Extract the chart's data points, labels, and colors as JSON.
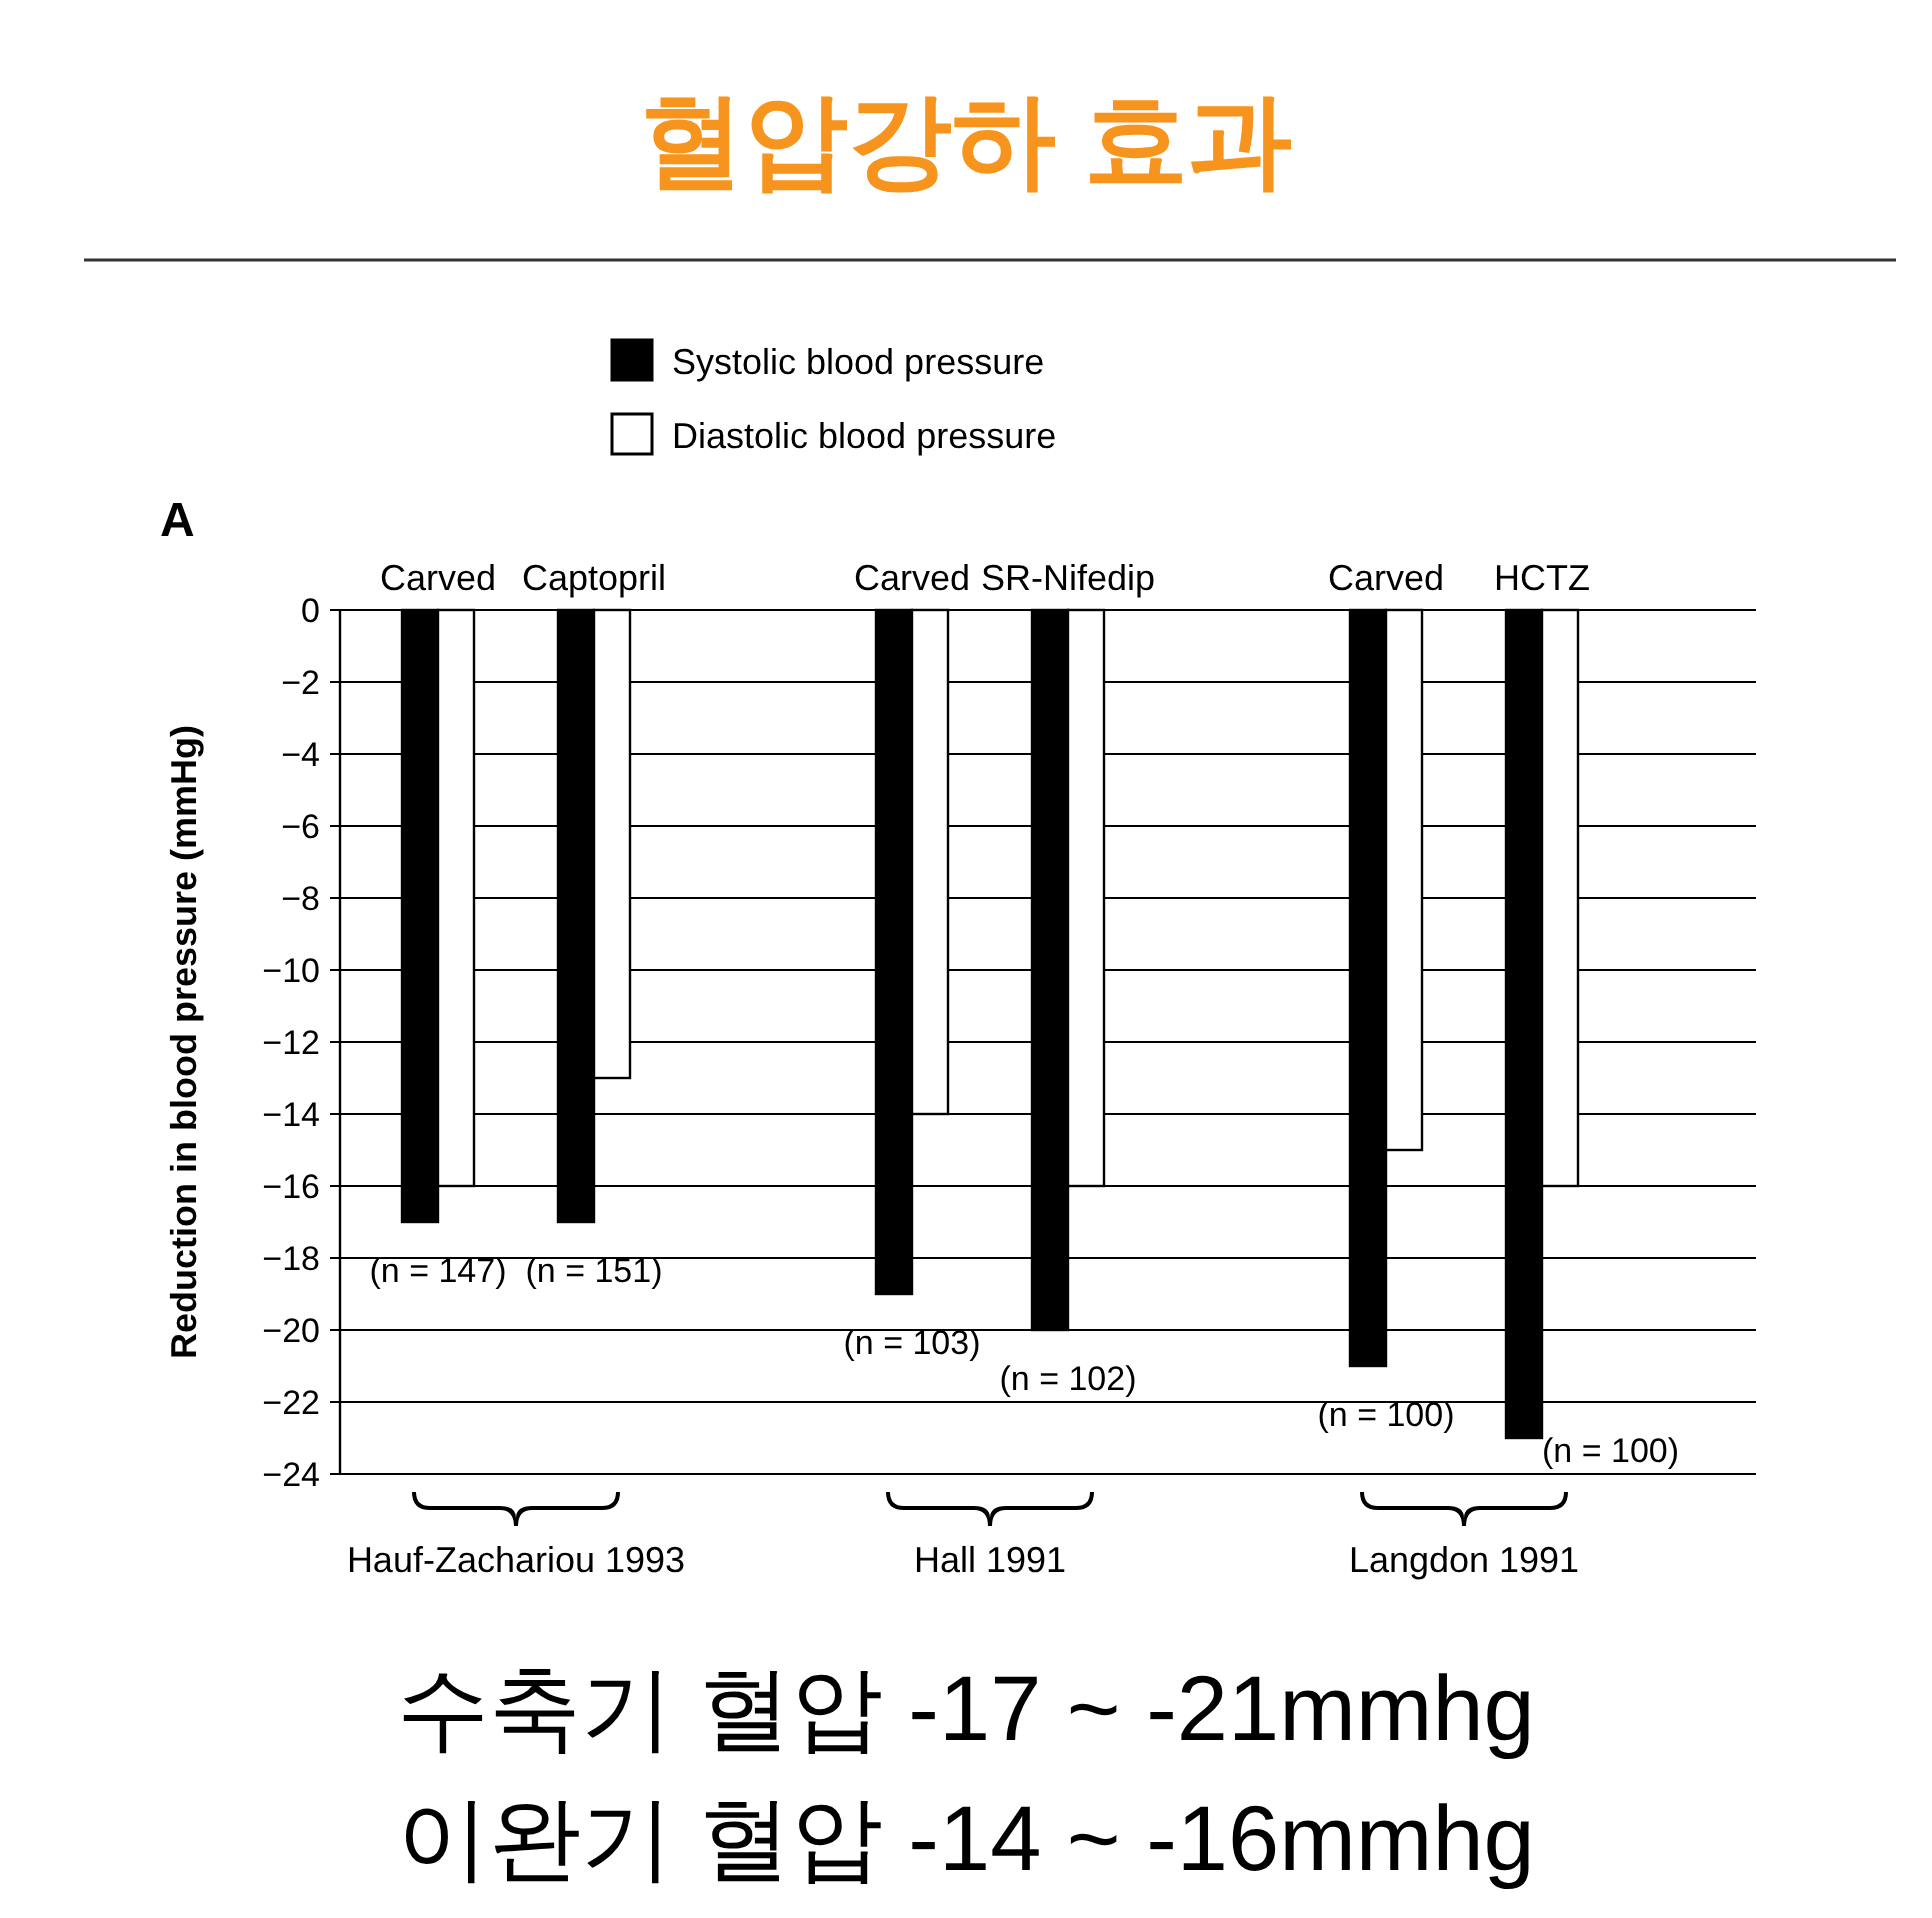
{
  "chart_data": {
    "type": "bar",
    "title": "혈압강하 효과",
    "ylabel": "Reduction in blood pressure (mmHg)",
    "categories": [
      "Carved",
      "Captopril",
      "Carved",
      "SR-Nifedip",
      "Carved",
      "HCTZ"
    ],
    "series": [
      {
        "name": "Systolic blood pressure",
        "color": "#000000",
        "values": [
          -17,
          -17,
          -19,
          -20,
          -21,
          -23
        ]
      },
      {
        "name": "Diastolic blood pressure",
        "color": "#ffffff",
        "values": [
          -16,
          -13,
          -14,
          -16,
          -15,
          -16
        ]
      }
    ],
    "ylim": [
      -24,
      0
    ],
    "yticks": [
      0,
      -2,
      -4,
      -6,
      -8,
      -10,
      -12,
      -14,
      -16,
      -18,
      -20,
      -22,
      -24
    ],
    "grid": "y",
    "legend": "top",
    "annotations": [
      "A",
      "(n = 147)",
      "(n = 151)",
      "(n = 103)",
      "(n = 102)",
      "(n = 100)",
      "(n = 100)",
      "Hauf-Zachariou 1993",
      "Hall 1991",
      "Langdon 1991",
      "수축기 혈압 -17 ~ -21mmhg",
      "이완기 혈압 -14 ~ -16mmhg"
    ]
  }
}
